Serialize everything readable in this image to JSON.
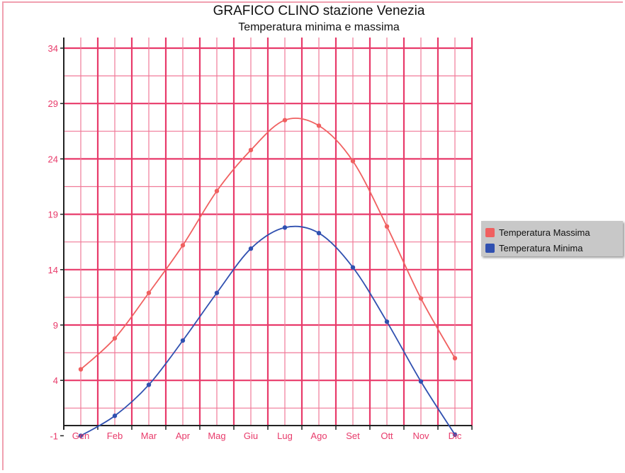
{
  "chart_data": {
    "type": "line",
    "title": "GRAFICO CLINO stazione Venezia",
    "subtitle": "Temperatura minima e massima",
    "categories": [
      "Gen",
      "Feb",
      "Mar",
      "Apr",
      "Mag",
      "Giu",
      "Lug",
      "Ago",
      "Set",
      "Ott",
      "Nov",
      "Dic"
    ],
    "yticks": [
      -1,
      4,
      9,
      14,
      19,
      24,
      29,
      34
    ],
    "ylim": [
      -1,
      35
    ],
    "grid": true,
    "legend_position": "right",
    "series": [
      {
        "name": "Temperatura Massima",
        "color": "#f06060",
        "values": [
          5.0,
          7.8,
          11.9,
          16.2,
          21.1,
          24.8,
          27.5,
          27.0,
          23.8,
          17.9,
          11.4,
          6.0
        ]
      },
      {
        "name": "Temperatura Minima",
        "color": "#3050b0",
        "values": [
          -1.0,
          0.8,
          3.6,
          7.6,
          11.9,
          15.9,
          17.8,
          17.3,
          14.2,
          9.3,
          3.9,
          -0.9
        ]
      }
    ]
  }
}
